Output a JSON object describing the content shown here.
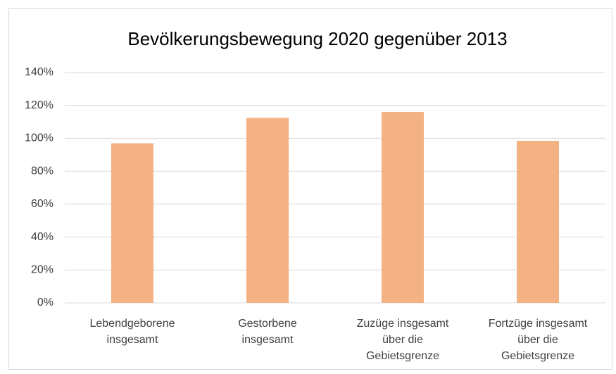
{
  "chart_data": {
    "type": "bar",
    "title": "Bevölkerungsbewegung 2020 gegenüber 2013",
    "categories": [
      "Lebendgeborene insgesamt",
      "Gestorbene insgesamt",
      "Zuzüge insgesamt über die Gebietsgrenze",
      "Fortzüge insgesamt über die Gebietsgrenze"
    ],
    "values": [
      97,
      112.5,
      116,
      98.5
    ],
    "color": "#f4b183",
    "ylim": [
      0,
      140
    ],
    "yticks": [
      {
        "value": 0,
        "label": "0%"
      },
      {
        "value": 20,
        "label": "20%"
      },
      {
        "value": 40,
        "label": "40%"
      },
      {
        "value": 60,
        "label": "60%"
      },
      {
        "value": 80,
        "label": "80%"
      },
      {
        "value": 100,
        "label": "100%"
      },
      {
        "value": 120,
        "label": "120%"
      },
      {
        "value": 140,
        "label": "140%"
      }
    ],
    "grid": true
  }
}
